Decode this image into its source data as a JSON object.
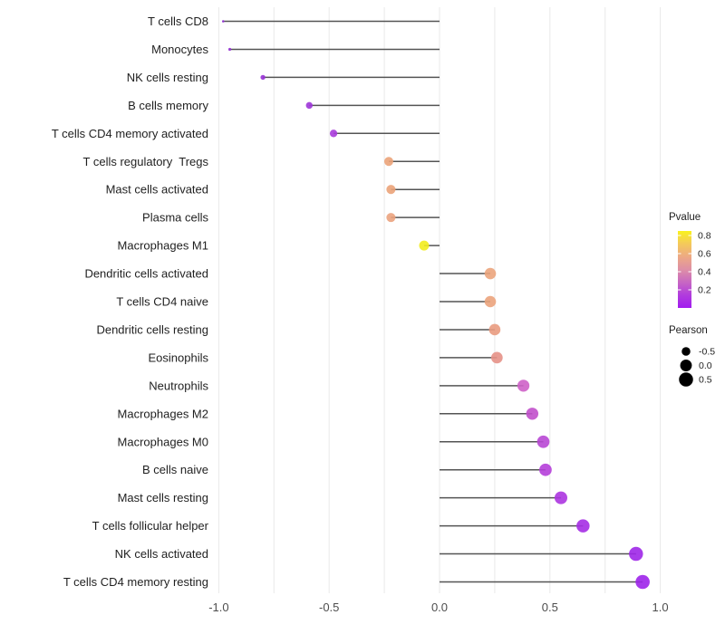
{
  "chart_data": {
    "type": "lollipop",
    "title": "",
    "xlabel": "",
    "ylabel": "",
    "xlim": [
      -1.02,
      1.08
    ],
    "grid": "vertical gridlines every 0.25, light gray, no horizontal gridlines",
    "stem_color": "#545454",
    "gridline_color": "#E9E9E9",
    "x_ticks": [
      {
        "value": -1.0,
        "label": "-1.0"
      },
      {
        "value": -0.5,
        "label": "-0.5"
      },
      {
        "value": 0.0,
        "label": "0.0"
      },
      {
        "value": 0.5,
        "label": "0.5"
      },
      {
        "value": 1.0,
        "label": "1.0"
      }
    ],
    "points": [
      {
        "label": "T cells CD8",
        "pearson": -0.98,
        "pvalue": 0.16,
        "color": "#8E2BD1"
      },
      {
        "label": "Monocytes",
        "pearson": -0.95,
        "pvalue": 0.16,
        "color": "#9330D3"
      },
      {
        "label": "NK cells resting",
        "pearson": -0.8,
        "pvalue": 0.16,
        "color": "#9732D5"
      },
      {
        "label": "B cells memory",
        "pearson": -0.59,
        "pvalue": 0.18,
        "color": "#9D36D8"
      },
      {
        "label": "T cells CD4 memory activated",
        "pearson": -0.48,
        "pvalue": 0.21,
        "color": "#A83CDC"
      },
      {
        "label": "T cells regulatory  Tregs",
        "pearson": -0.23,
        "pvalue": 0.52,
        "color": "#EBA379"
      },
      {
        "label": "Mast cells activated",
        "pearson": -0.22,
        "pvalue": 0.52,
        "color": "#EBA379"
      },
      {
        "label": "Plasma cells",
        "pearson": -0.22,
        "pvalue": 0.52,
        "color": "#EBA37E"
      },
      {
        "label": "Macrophages M1",
        "pearson": -0.07,
        "pvalue": 0.83,
        "color": "#F2EC1E"
      },
      {
        "label": "Dendritic cells activated",
        "pearson": 0.23,
        "pvalue": 0.51,
        "color": "#EBA47C"
      },
      {
        "label": "T cells CD4 naive",
        "pearson": 0.23,
        "pvalue": 0.51,
        "color": "#EBA37C"
      },
      {
        "label": "Dendritic cells resting",
        "pearson": 0.25,
        "pvalue": 0.48,
        "color": "#E99B80"
      },
      {
        "label": "Eosinophils",
        "pearson": 0.26,
        "pvalue": 0.45,
        "color": "#E59187"
      },
      {
        "label": "Neutrophils",
        "pearson": 0.38,
        "pvalue": 0.29,
        "color": "#CE62C8"
      },
      {
        "label": "Macrophages M2",
        "pearson": 0.42,
        "pvalue": 0.25,
        "color": "#C150CB"
      },
      {
        "label": "Macrophages M0",
        "pearson": 0.47,
        "pvalue": 0.21,
        "color": "#B847D4"
      },
      {
        "label": "B cells naive",
        "pearson": 0.48,
        "pvalue": 0.19,
        "color": "#B53FD9"
      },
      {
        "label": "Mast cells resting",
        "pearson": 0.55,
        "pvalue": 0.14,
        "color": "#AC35E0"
      },
      {
        "label": "T cells follicular helper",
        "pearson": 0.65,
        "pvalue": 0.1,
        "color": "#A52EE4"
      },
      {
        "label": "NK cells activated",
        "pearson": 0.89,
        "pvalue": 0.05,
        "color": "#9F27E8"
      },
      {
        "label": "T cells CD4 memory resting",
        "pearson": 0.92,
        "pvalue": 0.04,
        "color": "#9D24EA"
      }
    ]
  },
  "legend": {
    "pvalue": {
      "title": "Pvalue",
      "bar_range": [
        0.0,
        0.85
      ],
      "gradient_top_to_bottom": [
        "#F9F21E",
        "#F4C95B",
        "#EDA984",
        "#DE8FA6",
        "#C767C3",
        "#B13CDD",
        "#A11BEF"
      ],
      "ticks": [
        {
          "value": 0.8,
          "label": "0.8"
        },
        {
          "value": 0.6,
          "label": "0.6"
        },
        {
          "value": 0.4,
          "label": "0.4"
        },
        {
          "value": 0.2,
          "label": "0.2"
        }
      ]
    },
    "pearson": {
      "title": "Pearson",
      "dot_color": "#000000",
      "entries": [
        {
          "value": -0.5,
          "label": "-0.5"
        },
        {
          "value": 0.0,
          "label": "0.0"
        },
        {
          "value": 0.5,
          "label": "0.5"
        }
      ]
    }
  }
}
